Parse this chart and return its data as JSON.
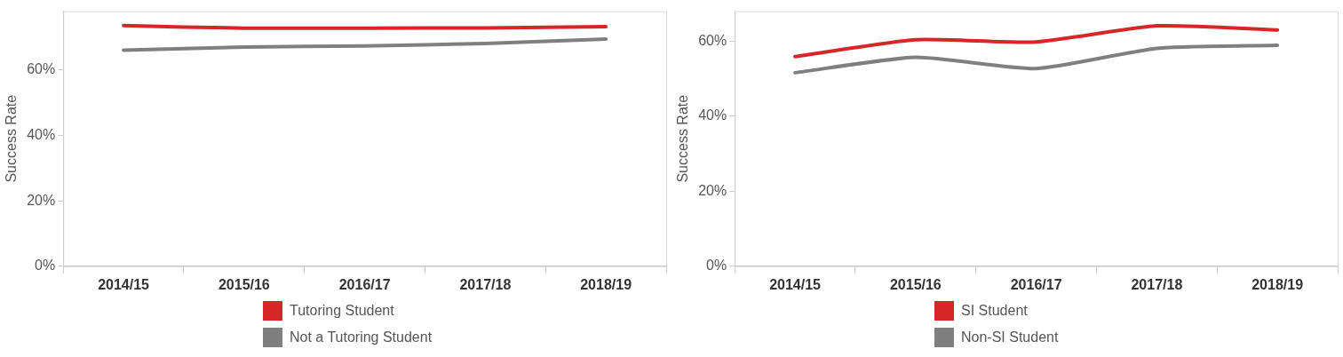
{
  "chart_data": [
    {
      "type": "line",
      "ylabel": "Success Rate",
      "categories": [
        "2014/15",
        "2015/16",
        "2016/17",
        "2017/18",
        "2018/19"
      ],
      "ylim": [
        0,
        78
      ],
      "yticks": [
        {
          "value": 0,
          "label": "0%"
        },
        {
          "value": 20,
          "label": "20%"
        },
        {
          "value": 40,
          "label": "40%"
        },
        {
          "value": 60,
          "label": "60%"
        }
      ],
      "grid": false,
      "legend": "bottom",
      "marker": "none",
      "series": [
        {
          "name": "Tutoring Student",
          "color": "#d62728",
          "values": [
            73.6,
            72.8,
            72.8,
            72.9,
            73.3
          ]
        },
        {
          "name": "Not a Tutoring Student",
          "color": "#7f7f7f",
          "values": [
            66.1,
            67.0,
            67.4,
            68.1,
            69.5
          ]
        }
      ]
    },
    {
      "type": "line",
      "ylabel": "Success Rate",
      "categories": [
        "2014/15",
        "2015/16",
        "2016/17",
        "2017/18",
        "2018/19"
      ],
      "ylim": [
        0,
        68
      ],
      "yticks": [
        {
          "value": 0,
          "label": "0%"
        },
        {
          "value": 20,
          "label": "20%"
        },
        {
          "value": 40,
          "label": "40%"
        },
        {
          "value": 60,
          "label": "60%"
        }
      ],
      "grid": false,
      "legend": "bottom",
      "marker": "none",
      "series": [
        {
          "name": "SI Student",
          "color": "#d62728",
          "values": [
            55.9,
            60.4,
            59.8,
            64.1,
            63.0
          ]
        },
        {
          "name": "Non-SI Student",
          "color": "#7f7f7f",
          "values": [
            51.6,
            55.7,
            52.7,
            58.1,
            58.9
          ]
        }
      ]
    }
  ]
}
